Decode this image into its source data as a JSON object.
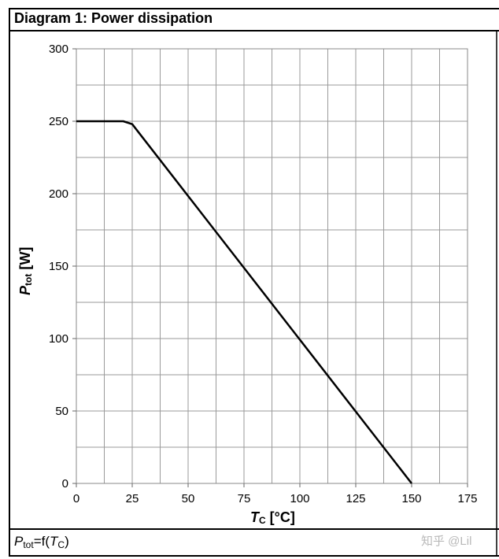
{
  "header": {
    "title": "Diagram 1: Power dissipation"
  },
  "footer": {
    "symbol": "P",
    "symbol_sub": "tot",
    "eq": "=f(",
    "arg": "T",
    "arg_sub": "C",
    "close": ")"
  },
  "watermark": "知乎 @Lil",
  "chart_data": {
    "type": "line",
    "title": "Diagram 1: Power dissipation",
    "xlabel": "T",
    "xlabel_sub": "C",
    "xlabel_unit": " [°C]",
    "ylabel": "P",
    "ylabel_sub": "tot",
    "ylabel_unit": " [W]",
    "xlim": [
      0,
      175
    ],
    "ylim": [
      0,
      300
    ],
    "x_ticks": [
      0,
      25,
      50,
      75,
      100,
      125,
      150,
      175
    ],
    "y_ticks": [
      0,
      50,
      100,
      150,
      200,
      250,
      300
    ],
    "x_minor_step": 12.5,
    "y_minor_step": 25,
    "grid": true,
    "series": [
      {
        "x": [
          0,
          21,
          25,
          150
        ],
        "y": [
          250,
          250,
          248,
          0
        ],
        "color": "#000000"
      }
    ]
  }
}
